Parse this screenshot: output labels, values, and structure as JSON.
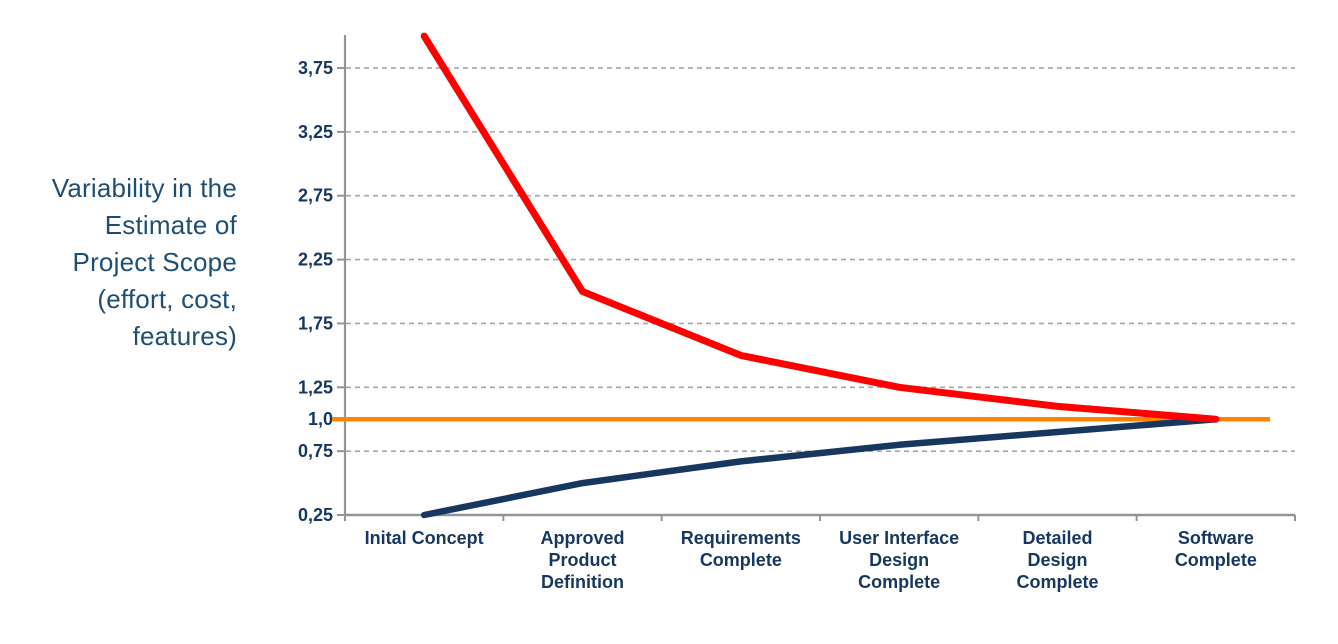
{
  "y_axis_title": {
    "lines": [
      "Variability in the",
      "Estimate of",
      "Project Scope",
      "(effort, cost,",
      "features)"
    ],
    "color": "#1F4E74"
  },
  "chart_data": {
    "type": "line",
    "title": "",
    "xlabel": "",
    "ylabel": "Variability in the Estimate of Project Scope (effort, cost, features)",
    "categories": [
      "Inital Concept",
      "Approved Product Definition",
      "Requirements Complete",
      "User Interface Design Complete",
      "Detailed Design Complete",
      "Software Complete"
    ],
    "category_label_lines": [
      [
        "Inital Concept"
      ],
      [
        "Approved",
        "Product",
        "Definition"
      ],
      [
        "Requirements",
        "Complete"
      ],
      [
        "User Interface",
        "Design",
        "Complete"
      ],
      [
        "Detailed",
        "Design",
        "Complete"
      ],
      [
        "Software",
        "Complete"
      ]
    ],
    "series": [
      {
        "name": "upper-bound-estimate",
        "color": "#FE0000",
        "stroke_width": 7,
        "values": [
          4.0,
          2.0,
          1.5,
          1.25,
          1.1,
          1.0
        ]
      },
      {
        "name": "lower-bound-estimate",
        "color": "#17375E",
        "stroke_width": 6.5,
        "values": [
          0.25,
          0.5,
          0.67,
          0.8,
          0.9,
          1.0
        ]
      }
    ],
    "reference_line": {
      "name": "nominal-estimate",
      "value": 1.0,
      "label": "1,0",
      "color": "#FF8400",
      "stroke_width": 4.5
    },
    "y_ticks": [
      {
        "label": "3,75",
        "value": 3.75,
        "gridline": true
      },
      {
        "label": "3,25",
        "value": 3.25,
        "gridline": true
      },
      {
        "label": "2,75",
        "value": 2.75,
        "gridline": true
      },
      {
        "label": "2,25",
        "value": 2.25,
        "gridline": true
      },
      {
        "label": "1,75",
        "value": 1.75,
        "gridline": true
      },
      {
        "label": "1,25",
        "value": 1.25,
        "gridline": true
      },
      {
        "label": "1,0",
        "value": 1.0,
        "gridline": false
      },
      {
        "label": "0,75",
        "value": 0.75,
        "gridline": true
      },
      {
        "label": "0,25",
        "value": 0.25,
        "gridline": false
      }
    ],
    "ylim": [
      0.25,
      4.0
    ],
    "grid": "dashed-horizontal",
    "legend": "none",
    "colors": {
      "axis": "#8F959B",
      "gridline": "#A6A6A6",
      "tick_label": "#17375E",
      "category_label": "#17375E"
    }
  }
}
